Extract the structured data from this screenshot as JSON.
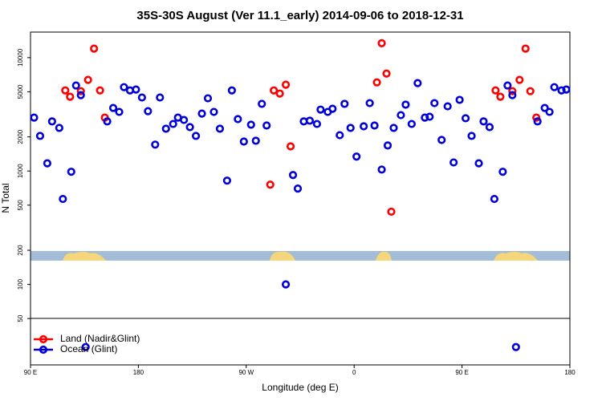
{
  "chart_data": {
    "type": "scatter",
    "title": "35S-30S August (Ver 11.1_early)   2014-09-06 to 2018-12-31",
    "x_label": "Longitude (deg E)",
    "y_label": "N Total",
    "log_y": true,
    "xlim": [
      90,
      540
    ],
    "ylim": [
      19.5,
      16800
    ],
    "xticks": [
      {
        "value": 90,
        "label": "90 E"
      },
      180,
      {
        "value": 270,
        "label": "90 W"
      },
      {
        "value": 360,
        "label": "0"
      },
      {
        "value": 450,
        "label": "90 E"
      },
      {
        "value": 540,
        "label": "180"
      }
    ],
    "yticks": [
      50,
      100,
      200,
      500,
      1000,
      2000,
      5000,
      10000
    ],
    "legend": "bottom-left",
    "series": [
      {
        "name": "Land (Nadir&Glint)",
        "color": "#ff0000",
        "x": [
          119,
          123,
          132,
          138,
          143,
          148,
          152,
          290,
          293,
          298,
          303,
          307,
          379,
          383,
          387,
          391,
          478,
          482,
          492,
          498,
          503,
          507,
          512
        ],
        "values": [
          5140,
          4520,
          5060,
          6360,
          12000,
          5140,
          2960,
          758,
          5140,
          4820,
          5770,
          1650,
          6050,
          13400,
          7230,
          438,
          5140,
          4520,
          5060,
          6360,
          12000,
          5060,
          2960
        ]
      },
      {
        "name": "Ocean (Glint)",
        "color": "#0000dd",
        "x": [
          93,
          98,
          104,
          108,
          114,
          117,
          124,
          128,
          132,
          136,
          154,
          159,
          164,
          168,
          173,
          178,
          183,
          188,
          194,
          198,
          203,
          209,
          213,
          218,
          223,
          228,
          233,
          238,
          243,
          248,
          254,
          258,
          263,
          268,
          274,
          278,
          283,
          287,
          309,
          313,
          303,
          318,
          323,
          329,
          332,
          338,
          342,
          348,
          352,
          357,
          362,
          368,
          373,
          377,
          383,
          388,
          393,
          399,
          403,
          408,
          413,
          419,
          423,
          427,
          433,
          438,
          443,
          448,
          453,
          458,
          464,
          468,
          473,
          477,
          484,
          488,
          492,
          495,
          513,
          519,
          523,
          527,
          533,
          537
        ],
        "values": [
          2960,
          2040,
          1170,
          2740,
          2400,
          567,
          985,
          5680,
          4670,
          28,
          2740,
          3600,
          3320,
          5490,
          5140,
          5230,
          4450,
          3370,
          1710,
          4450,
          2360,
          2600,
          2960,
          2820,
          2440,
          2040,
          3210,
          4380,
          3320,
          2360,
          823,
          5140,
          2870,
          1820,
          2560,
          1850,
          3910,
          2520,
          922,
          700,
          100,
          2740,
          2780,
          2600,
          3480,
          3320,
          3540,
          2070,
          3910,
          2400,
          1340,
          2480,
          3970,
          2520,
          1030,
          1680,
          2400,
          3110,
          3850,
          2600,
          5960,
          2960,
          3010,
          3970,
          1880,
          3720,
          1190,
          4240,
          2920,
          2040,
          1170,
          2740,
          2440,
          567,
          985,
          5680,
          4670,
          28,
          2740,
          3600,
          3320,
          5490,
          5140,
          5230
        ]
      }
    ]
  }
}
